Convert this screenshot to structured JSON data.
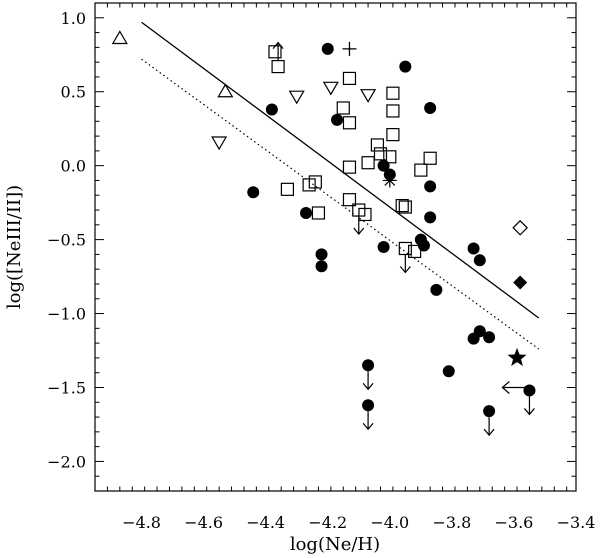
{
  "chart_data": {
    "type": "scatter",
    "xlabel": "log(Ne/H)",
    "ylabel": "log([NeIII/II])",
    "xlim": [
      -4.95,
      -3.4
    ],
    "ylim": [
      -2.2,
      1.1
    ],
    "x_ticks": [
      -4.8,
      -4.6,
      -4.4,
      -4.2,
      -4.0,
      -3.8,
      -3.6,
      -3.4
    ],
    "x_tick_labels": [
      "−4.8",
      "−4.6",
      "−4.4",
      "−4.2",
      "−4.0",
      "−3.8",
      "−3.6",
      "−3.4"
    ],
    "y_ticks": [
      1.0,
      0.5,
      0.0,
      -0.5,
      -1.0,
      -1.5,
      -2.0
    ],
    "y_tick_labels": [
      "1.0",
      "0.5",
      "0.0",
      "−0.5",
      "−1.0",
      "−1.5",
      "−2.0"
    ],
    "lines": [
      {
        "style": "solid",
        "x": [
          -4.8,
          -3.52
        ],
        "y": [
          0.97,
          -1.03
        ]
      },
      {
        "style": "dotted",
        "x": [
          -4.8,
          -3.52
        ],
        "y": [
          0.72,
          -1.24
        ]
      }
    ],
    "series": [
      {
        "marker": "filled-circle",
        "points": [
          [
            -4.2,
            0.79
          ],
          [
            -3.95,
            0.67
          ],
          [
            -4.38,
            0.38
          ],
          [
            -3.87,
            0.39
          ],
          [
            -4.17,
            0.31
          ],
          [
            -4.02,
            0.0
          ],
          [
            -4.44,
            -0.18
          ],
          [
            -3.87,
            -0.14
          ],
          [
            -4.0,
            -0.06
          ],
          [
            -4.27,
            -0.32
          ],
          [
            -3.87,
            -0.35
          ],
          [
            -4.22,
            -0.6
          ],
          [
            -4.22,
            -0.68
          ],
          [
            -4.02,
            -0.55
          ],
          [
            -3.9,
            -0.5
          ],
          [
            -3.89,
            -0.54
          ],
          [
            -3.73,
            -0.56
          ],
          [
            -3.71,
            -0.64
          ],
          [
            -3.85,
            -0.84
          ],
          [
            -3.73,
            -1.17
          ],
          [
            -3.71,
            -1.12
          ],
          [
            -3.68,
            -1.16
          ],
          [
            -3.81,
            -1.39
          ]
        ]
      },
      {
        "marker": "filled-circle-upper-limit",
        "points": [
          [
            -4.07,
            -1.35
          ],
          [
            -4.07,
            -1.62
          ],
          [
            -3.55,
            -1.52
          ],
          [
            -3.68,
            -1.66
          ]
        ]
      },
      {
        "marker": "open-square",
        "points": [
          [
            -4.37,
            0.77
          ],
          [
            -4.36,
            0.67
          ],
          [
            -4.13,
            0.59
          ],
          [
            -3.99,
            0.49
          ],
          [
            -4.15,
            0.39
          ],
          [
            -3.99,
            0.37
          ],
          [
            -4.13,
            0.29
          ],
          [
            -3.99,
            0.21
          ],
          [
            -4.04,
            0.14
          ],
          [
            -4.03,
            0.08
          ],
          [
            -4.0,
            0.06
          ],
          [
            -4.07,
            0.02
          ],
          [
            -3.87,
            0.05
          ],
          [
            -3.9,
            -0.03
          ],
          [
            -4.13,
            -0.01
          ],
          [
            -4.24,
            -0.11
          ],
          [
            -4.26,
            -0.13
          ],
          [
            -4.33,
            -0.16
          ],
          [
            -4.13,
            -0.23
          ],
          [
            -3.96,
            -0.27
          ],
          [
            -3.95,
            -0.28
          ],
          [
            -4.23,
            -0.32
          ],
          [
            -4.1,
            -0.3
          ],
          [
            -4.08,
            -0.33
          ],
          [
            -3.95,
            -0.56
          ],
          [
            -3.92,
            -0.58
          ]
        ]
      },
      {
        "marker": "open-square-upper-limit",
        "points": [
          [
            -4.1,
            -0.3
          ],
          [
            -3.95,
            -0.56
          ]
        ]
      },
      {
        "marker": "open-square-lower-limit",
        "points": [
          [
            -4.36,
            0.67
          ]
        ]
      },
      {
        "marker": "open-triangle-down",
        "points": [
          [
            -4.3,
            0.47
          ],
          [
            -4.07,
            0.48
          ],
          [
            -4.55,
            0.16
          ],
          [
            -4.19,
            0.53
          ]
        ]
      },
      {
        "marker": "open-triangle-up",
        "points": [
          [
            -4.87,
            0.86
          ],
          [
            -4.53,
            0.5
          ]
        ]
      },
      {
        "marker": "plus",
        "points": [
          [
            -4.13,
            0.79
          ]
        ]
      },
      {
        "marker": "asterisk",
        "points": [
          [
            -4.0,
            -0.1
          ]
        ]
      },
      {
        "marker": "open-diamond",
        "points": [
          [
            -3.58,
            -0.42
          ]
        ]
      },
      {
        "marker": "filled-diamond",
        "points": [
          [
            -3.58,
            -0.79
          ]
        ]
      },
      {
        "marker": "filled-star",
        "points": [
          [
            -3.59,
            -1.3
          ]
        ]
      },
      {
        "marker": "left-arrow",
        "points": [
          [
            -3.56,
            -1.5
          ]
        ]
      }
    ]
  }
}
